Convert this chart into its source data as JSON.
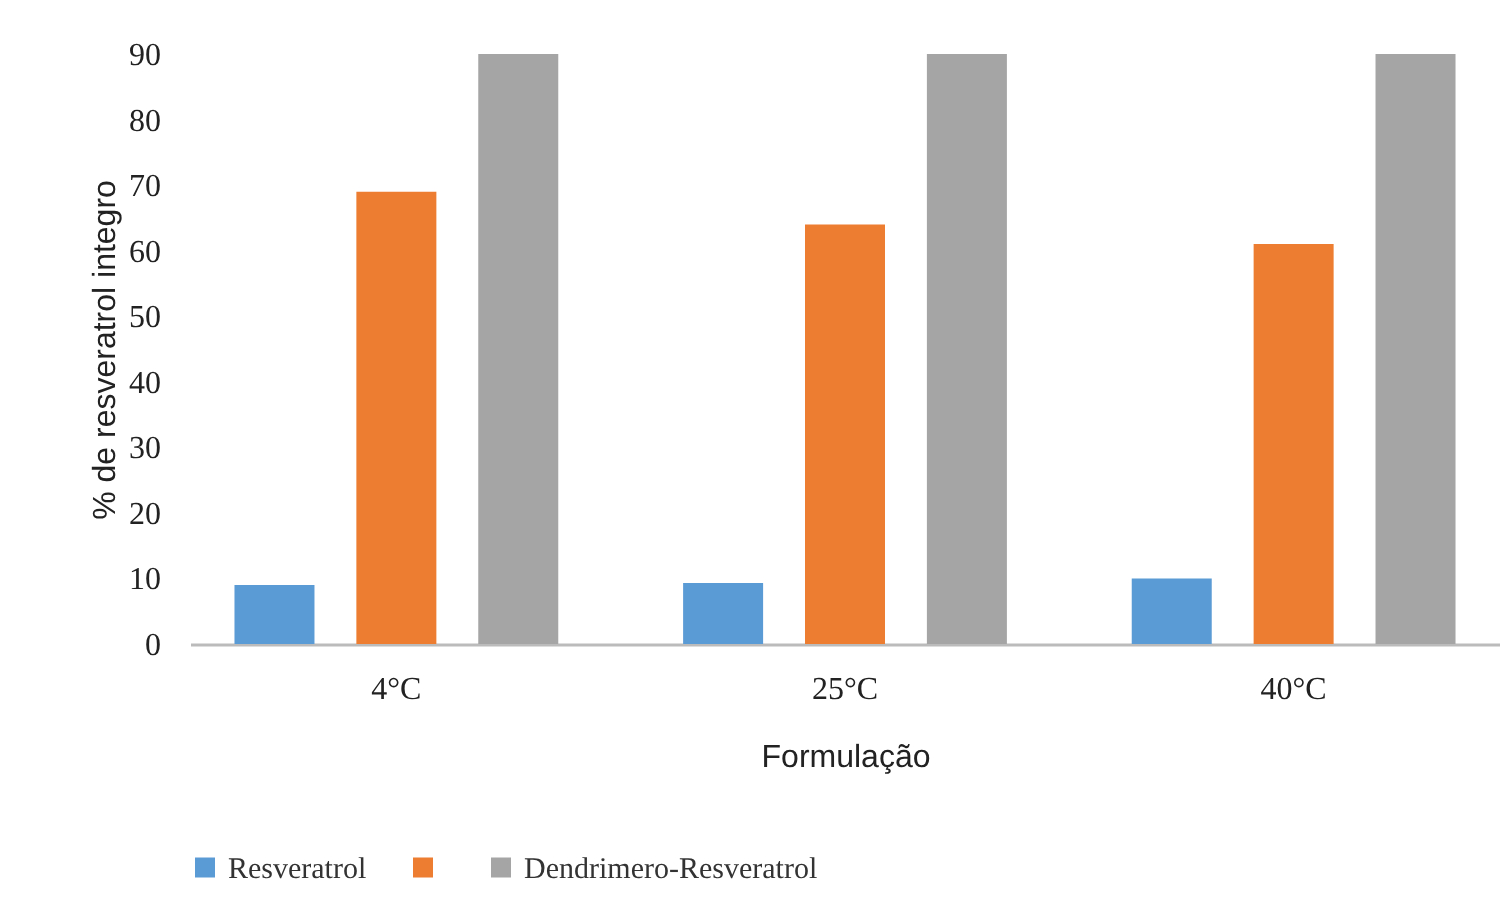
{
  "chart_data": {
    "type": "bar",
    "xlabel": "Formulação",
    "ylabel": "% de resveratrol integro",
    "categories": [
      "4°C",
      "25°C",
      "40°C"
    ],
    "series": [
      {
        "name": "Resveratrol",
        "color": "#5b9bd5",
        "values": [
          9,
          9.3,
          10
        ]
      },
      {
        "color": "#ed7d31",
        "values": [
          69,
          64,
          61
        ]
      },
      {
        "name": "Dendrimero-Resveratrol",
        "color": "#a5a5a5",
        "values": [
          90,
          90,
          90
        ]
      }
    ],
    "ylim": [
      0,
      90
    ],
    "yticks": [
      0,
      10,
      20,
      30,
      40,
      50,
      60,
      70,
      80,
      90
    ],
    "grid": false,
    "legend": "bottom"
  }
}
